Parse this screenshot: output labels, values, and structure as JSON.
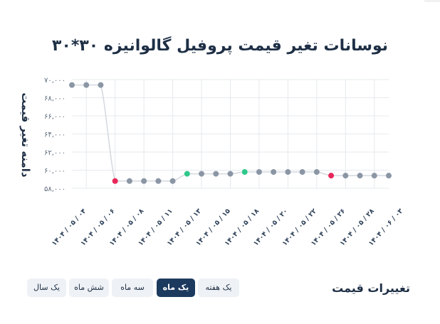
{
  "page": {
    "title": "نوسانات تغیر قیمت پروفیل گالوانیزه ۳۰*۳۰"
  },
  "footer": {
    "label": "تغییرات قیمت",
    "ranges": [
      {
        "label": "یک هفته",
        "active": false
      },
      {
        "label": "یک ماه",
        "active": true
      },
      {
        "label": "سه ماه",
        "active": false
      },
      {
        "label": "شش ماه",
        "active": false
      },
      {
        "label": "یک سال",
        "active": false
      }
    ]
  },
  "chart_data": {
    "type": "line",
    "title": "نوسانات تغیر قیمت پروفیل گالوانیزه ۳۰*۳۰",
    "ylabel": "دامنه تغیر قیمت",
    "ylim": [
      58000,
      70000
    ],
    "yticks": [
      "۵۸,۰۰۰",
      "۶۰,۰۰۰",
      "۶۲,۰۰۰",
      "۶۴,۰۰۰",
      "۶۶,۰۰۰",
      "۶۸,۰۰۰",
      "۷۰,۰۰۰"
    ],
    "ytick_values": [
      58000,
      60000,
      62000,
      64000,
      66000,
      68000,
      70000
    ],
    "xticks": [
      "۱۴۰۴ / ۰۵ / ۰۴",
      "۱۴۰۴ / ۰۵ / ۰۶",
      "۱۴۰۴ / ۰۵ / ۰۸",
      "۱۴۰۴ / ۰۵ / ۱۱",
      "۱۴۰۴ / ۰۵ / ۱۳",
      "۱۴۰۴ / ۰۵ / ۱۵",
      "۱۴۰۴ / ۰۵ / ۱۸",
      "۱۴۰۴ / ۰۵ / ۲۰",
      "۱۴۰۴ / ۰۵ / ۲۲",
      "۱۴۰۴ / ۰۵ / ۲۶",
      "۱۴۰۴ / ۰۵ / ۲۸",
      "۱۴۰۴ / ۰۶ / ۰۳"
    ],
    "xtick_index": [
      1,
      3,
      5,
      7,
      9,
      11,
      13,
      15,
      17,
      19,
      21,
      23
    ],
    "values": [
      69400,
      69400,
      69400,
      58800,
      58800,
      58800,
      58800,
      58800,
      59600,
      59600,
      59600,
      59600,
      59800,
      59800,
      59800,
      59800,
      59800,
      59800,
      59400,
      59400,
      59400,
      59400,
      59400
    ],
    "point_status": [
      "neutral",
      "neutral",
      "neutral",
      "decrease",
      "neutral",
      "neutral",
      "neutral",
      "neutral",
      "increase",
      "neutral",
      "neutral",
      "neutral",
      "increase",
      "neutral",
      "neutral",
      "neutral",
      "neutral",
      "neutral",
      "decrease",
      "neutral",
      "neutral",
      "neutral",
      "neutral"
    ],
    "grid": true,
    "colors": {
      "neutral": "#8b96a5",
      "increase": "#2ec98a",
      "decrease": "#e8265a",
      "line": "#d3d8df",
      "grid": "#e6e9ee"
    }
  }
}
